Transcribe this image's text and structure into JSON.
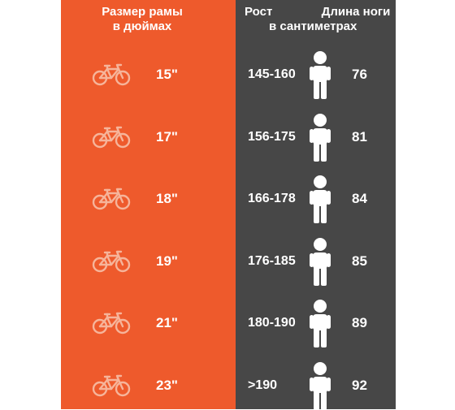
{
  "headers": {
    "frame_line1": "Размер рамы",
    "frame_line2": "в дюймах",
    "height_line1": "Рост",
    "height_line2": "в сантиметрах",
    "leg_line1": "Длина ноги"
  },
  "colors": {
    "orange": "#ee5a2c",
    "gray": "#474747",
    "icon_light": "#f6b49a",
    "text": "#ffffff"
  },
  "icons": {
    "bike": "bicycle-icon",
    "person": "person-icon"
  },
  "rows": [
    {
      "frame": "15\"",
      "height": "145-160",
      "leg": "76"
    },
    {
      "frame": "17\"",
      "height": "156-175",
      "leg": "81"
    },
    {
      "frame": "18\"",
      "height": "166-178",
      "leg": "84"
    },
    {
      "frame": "19\"",
      "height": "176-185",
      "leg": "85"
    },
    {
      "frame": "21\"",
      "height": "180-190",
      "leg": "89"
    },
    {
      "frame": "23\"",
      "height": ">190",
      "leg": "92"
    }
  ]
}
